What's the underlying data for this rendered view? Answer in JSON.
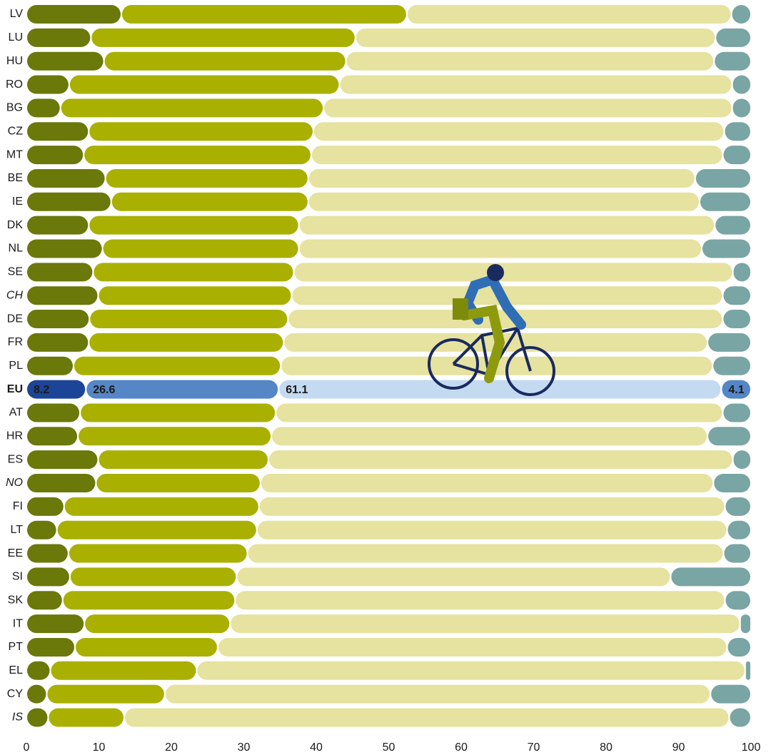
{
  "chart_data": {
    "type": "stacked-bar-horizontal",
    "categories": [
      "LV",
      "LU",
      "HU",
      "RO",
      "BG",
      "CZ",
      "MT",
      "BE",
      "IE",
      "DK",
      "NL",
      "SE",
      "CH",
      "DE",
      "FR",
      "PL",
      "EU",
      "AT",
      "HR",
      "ES",
      "NO",
      "FI",
      "LT",
      "EE",
      "SI",
      "SK",
      "IT",
      "PT",
      "EL",
      "CY",
      "IS"
    ],
    "highlight": 16,
    "italic": [
      12,
      20,
      30
    ],
    "series": [
      {
        "color": "#6b780a",
        "highlight_color": "#1c4597",
        "values": [
          13.1,
          8.9,
          10.7,
          5.9,
          4.7,
          8.6,
          7.9,
          10.9,
          11.7,
          8.6,
          10.5,
          9.2,
          9.9,
          8.7,
          8.6,
          6.5,
          8.2,
          7.4,
          7.1,
          9.9,
          9.6,
          5.2,
          4.2,
          5.8,
          6.0,
          5.0,
          8.0,
          6.7,
          3.3,
          2.8,
          3.0
        ]
      },
      {
        "color": "#a9b000",
        "highlight_color": "#5586c6",
        "values": [
          39.4,
          36.5,
          33.4,
          37.3,
          36.3,
          31.0,
          31.4,
          28.0,
          27.2,
          29.0,
          27.1,
          27.7,
          26.7,
          27.4,
          26.9,
          28.6,
          26.6,
          27.0,
          26.7,
          23.5,
          22.7,
          26.9,
          27.6,
          24.7,
          23.0,
          23.8,
          20.1,
          19.7,
          20.2,
          16.3,
          10.5
        ]
      },
      {
        "color": "#e6e29f",
        "highlight_color": "#c4daf1",
        "values": [
          44.8,
          49.7,
          50.8,
          54.2,
          56.4,
          56.7,
          56.8,
          53.4,
          54.0,
          57.4,
          55.6,
          60.6,
          59.5,
          60.0,
          58.5,
          59.6,
          61.1,
          61.7,
          60.2,
          64.1,
          62.5,
          64.3,
          64.9,
          65.7,
          59.9,
          67.6,
          70.4,
          70.3,
          75.7,
          75.3,
          83.5
        ]
      },
      {
        "color": "#79a5a4",
        "highlight_color": "#5586c6",
        "values": [
          2.7,
          4.9,
          5.1,
          2.6,
          2.6,
          3.7,
          3.9,
          7.7,
          7.1,
          5.0,
          6.8,
          2.5,
          3.9,
          3.9,
          6.0,
          5.3,
          4.1,
          3.9,
          6.0,
          2.5,
          5.2,
          3.6,
          3.3,
          3.8,
          11.1,
          3.6,
          1.5,
          3.3,
          0.8,
          5.6,
          3.0
        ]
      }
    ],
    "xlim": [
      0,
      100
    ],
    "xticks": [
      0,
      10,
      20,
      30,
      40,
      50,
      60,
      70,
      80,
      90,
      100
    ],
    "grid": false
  }
}
